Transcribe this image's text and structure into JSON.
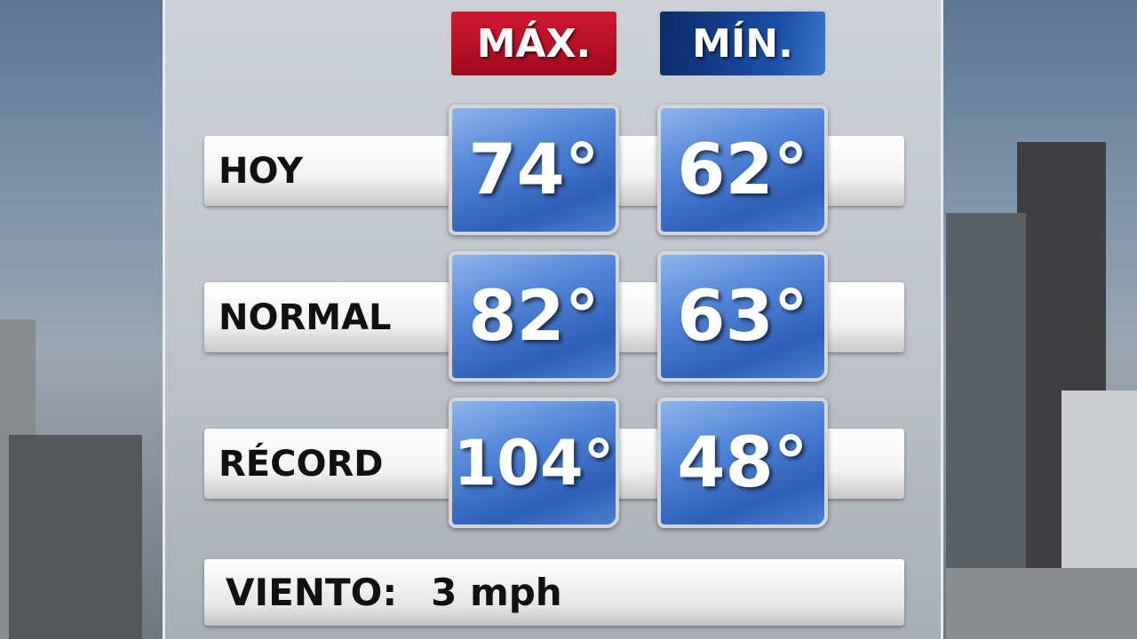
{
  "headers": {
    "max": "MÁX.",
    "min": "MÍN."
  },
  "rows": [
    {
      "label": "HOY",
      "max": "74°",
      "min": "62°"
    },
    {
      "label": "NORMAL",
      "max": "82°",
      "min": "63°"
    },
    {
      "label": "RÉCORD",
      "max": "104°",
      "min": "48°"
    }
  ],
  "wind": {
    "label": "VIENTO:",
    "value": "3 mph"
  },
  "colors": {
    "max_tab": "#b8102a",
    "min_tab": "#14398a",
    "value_box": "#3f72c8"
  }
}
